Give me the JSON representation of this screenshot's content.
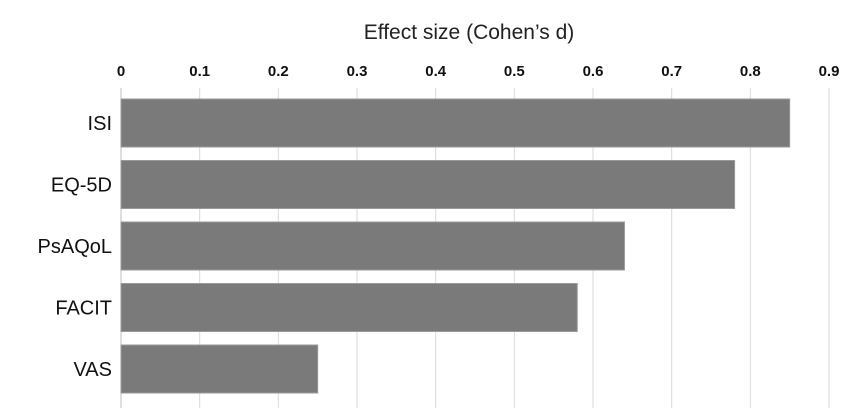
{
  "chart_data": {
    "type": "bar",
    "orientation": "horizontal",
    "title": "Effect size (Cohen’s d)",
    "categories": [
      "ISI",
      "EQ-5D",
      "PsAQoL",
      "FACIT",
      "VAS"
    ],
    "values": [
      0.85,
      0.78,
      0.64,
      0.58,
      0.25
    ],
    "xlim": [
      0,
      0.9
    ],
    "x_ticks": [
      "0",
      "0.1",
      "0.2",
      "0.3",
      "0.4",
      "0.5",
      "0.6",
      "0.7",
      "0.8",
      "0.9"
    ],
    "x_tick_values": [
      0,
      0.1,
      0.2,
      0.3,
      0.4,
      0.5,
      0.6,
      0.7,
      0.8,
      0.9
    ],
    "x_axis_position": "top",
    "grid": true,
    "bar_color": "#7a7a7a",
    "bar_edge_color": "#9a9a9a"
  }
}
